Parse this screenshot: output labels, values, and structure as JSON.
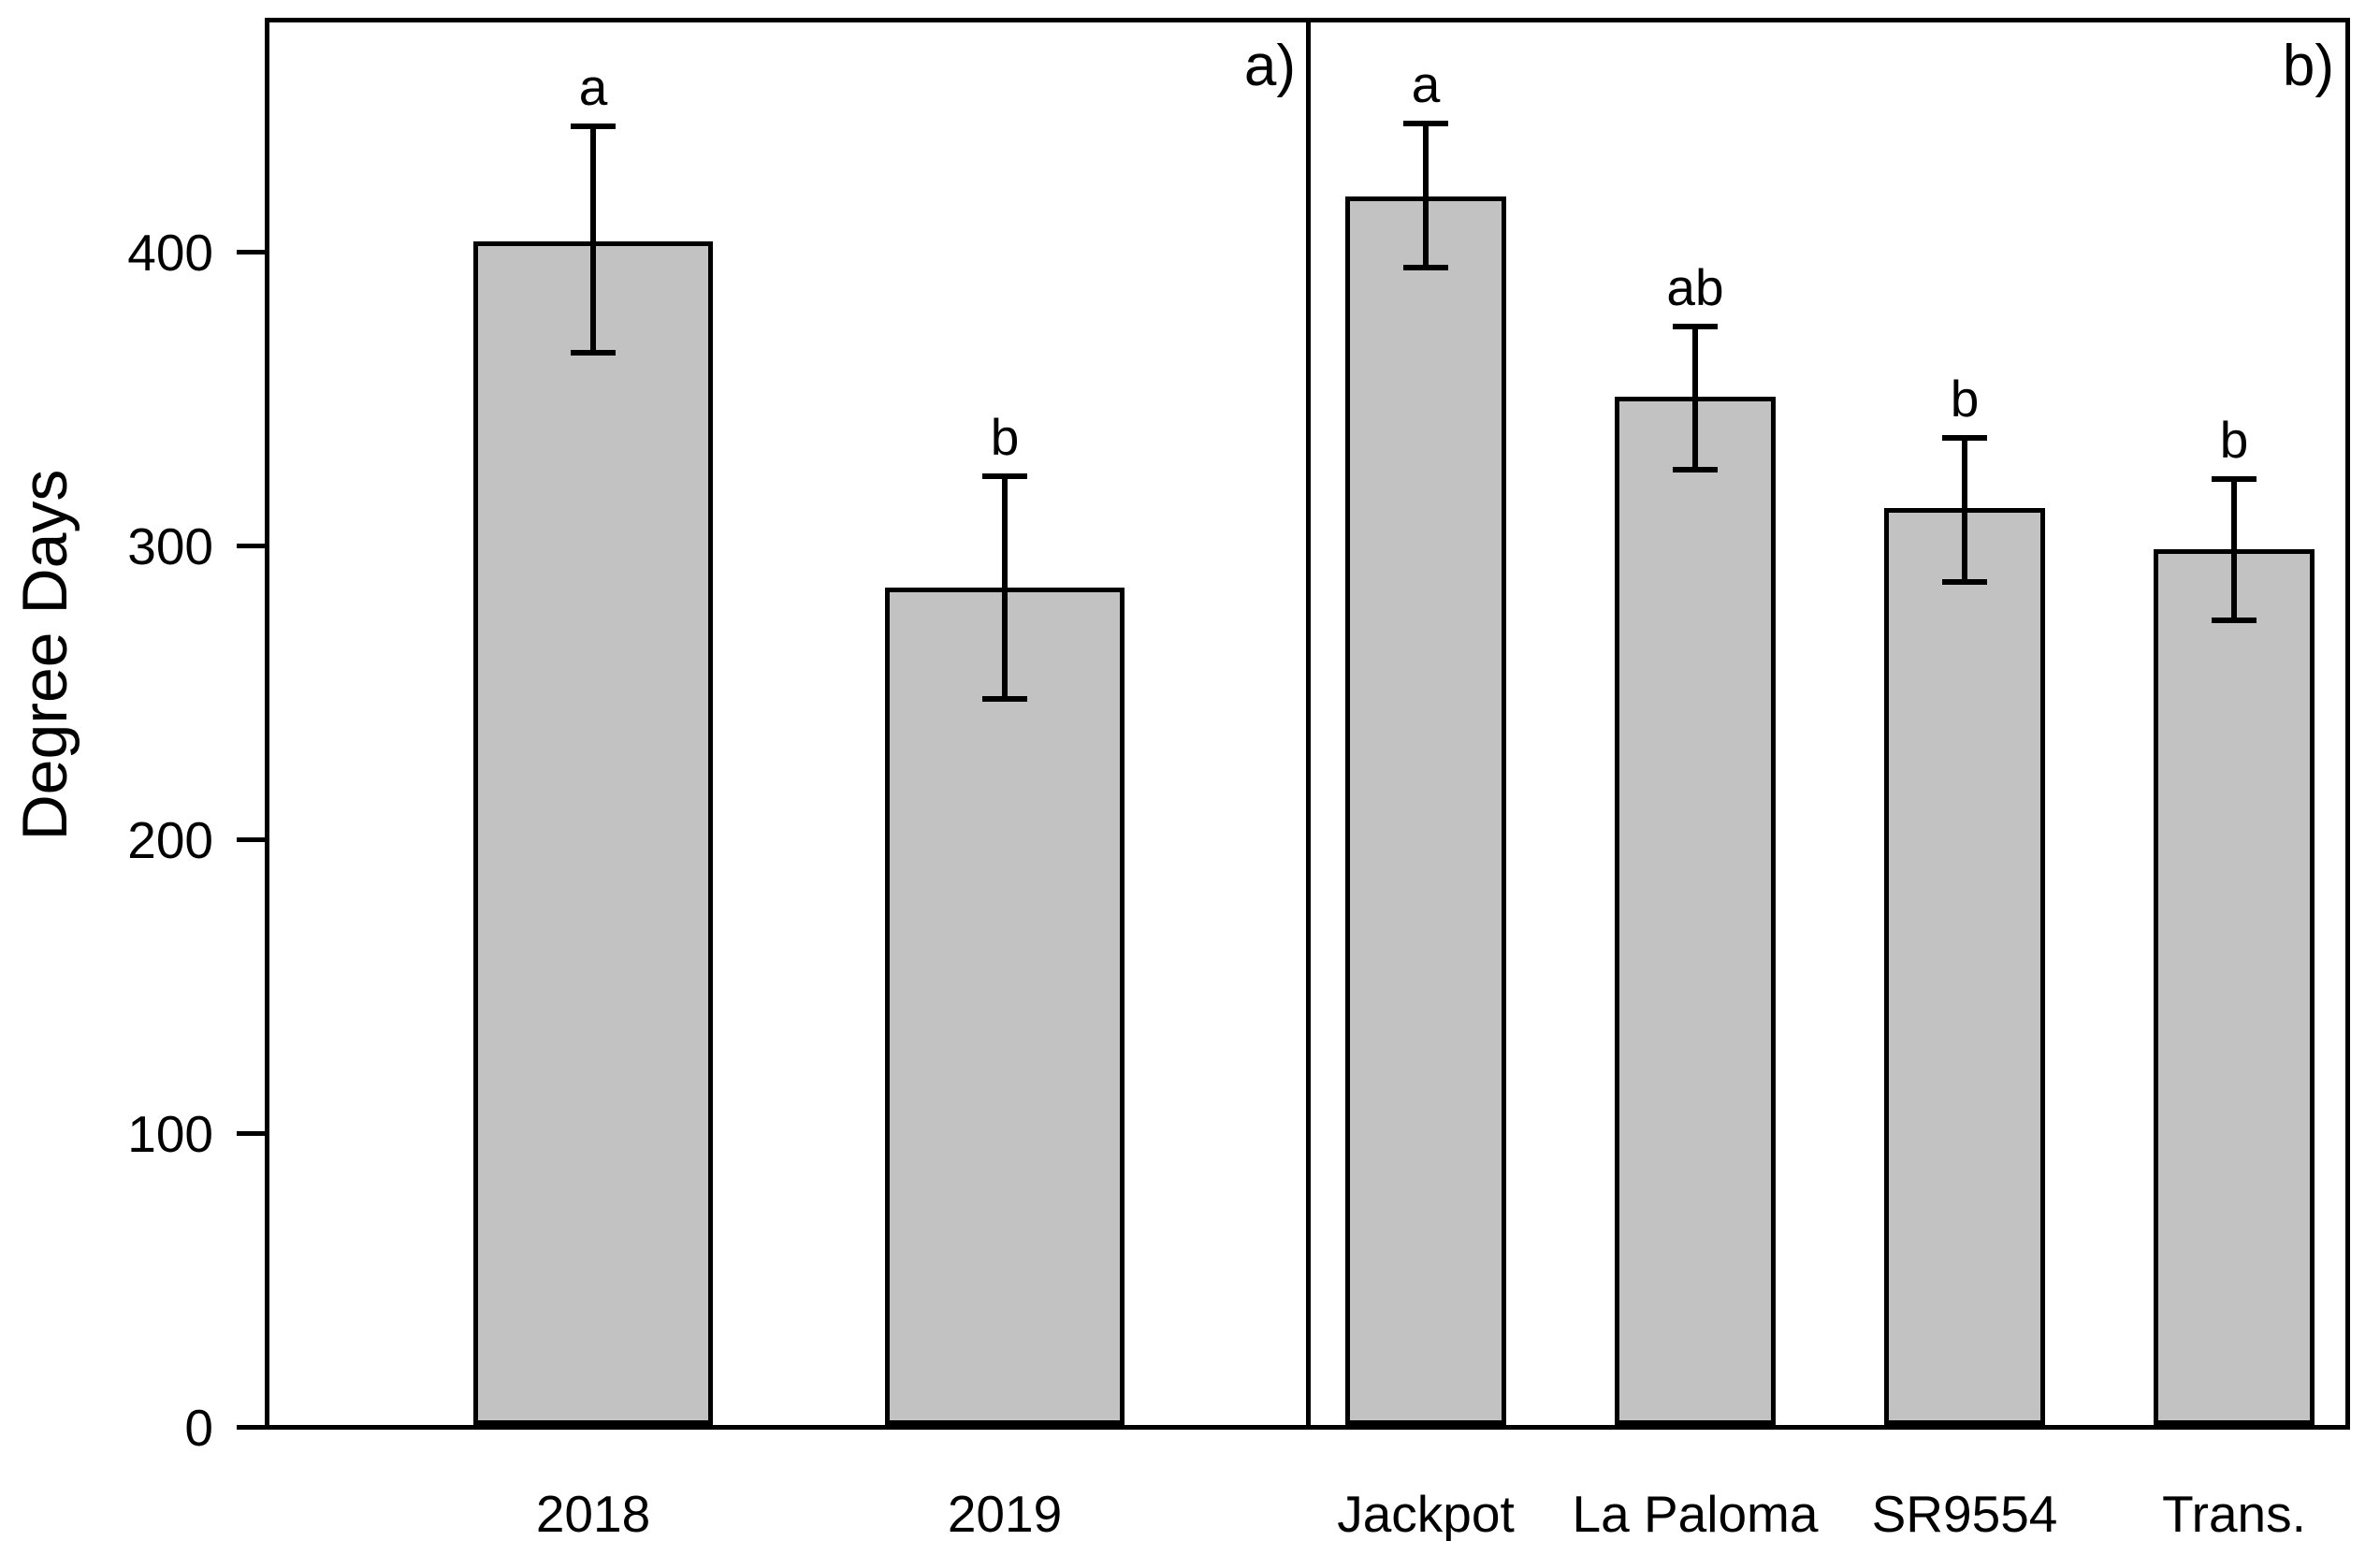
{
  "figure": {
    "background": "#ffffff",
    "ylabel": "Degree Days"
  },
  "chart_data": {
    "type": "bar",
    "title": "",
    "xlabel": "",
    "ylabel": "Degree Days",
    "ylim": [
      0,
      480
    ],
    "yticks": [
      0,
      100,
      200,
      300,
      400
    ],
    "grid": false,
    "legend": "none",
    "bar_fill": "#c2c2c2",
    "bar_edge": "#000000",
    "error_bar_color": "#000000",
    "panels": [
      {
        "label": "a)",
        "categories": [
          "2018",
          "2019"
        ],
        "values": [
          403,
          285
        ],
        "error_low": [
          365,
          247
        ],
        "error_high": [
          442,
          323
        ],
        "sig_letters": [
          "a",
          "b"
        ]
      },
      {
        "label": "b)",
        "categories": [
          "Jackpot",
          "La Paloma",
          "SR9554",
          "Trans."
        ],
        "values": [
          418,
          350,
          312,
          298
        ],
        "error_low": [
          394,
          325,
          287,
          274
        ],
        "error_high": [
          443,
          374,
          336,
          322
        ],
        "sig_letters": [
          "a",
          "ab",
          "b",
          "b"
        ]
      }
    ]
  }
}
